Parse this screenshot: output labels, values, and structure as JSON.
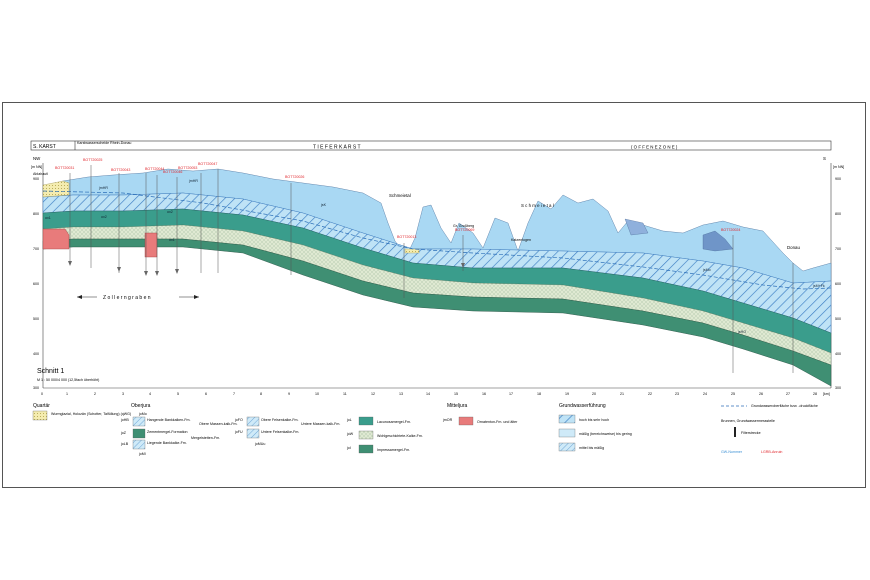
{
  "header": {
    "left_zone": "S. KARST",
    "divide_label": "Karstwasserscheide Rhein-Donau",
    "title": "T I E F E R   K A R S T",
    "right_zone": "( O F F E N E   Z O N E )"
  },
  "directions": {
    "left": "NW",
    "right": "S"
  },
  "axis": {
    "unit_left": "[m NN]",
    "unit_right": "[m NN]",
    "elevations": [
      "900",
      "800",
      "700",
      "600",
      "500",
      "400",
      "300"
    ],
    "km_ticks": [
      "0",
      "1",
      "2",
      "3",
      "4",
      "5",
      "6",
      "7",
      "8",
      "9",
      "10",
      "11",
      "12",
      "13",
      "14",
      "15",
      "16",
      "17",
      "18",
      "19",
      "20",
      "21",
      "22",
      "23",
      "24",
      "25",
      "26",
      "27",
      "28"
    ],
    "km_unit": "[km]"
  },
  "places": {
    "ablaheutl": "Ablahautl",
    "schmeietal": "Schmeietal",
    "schmeietal2": "S c h m e i e t a l",
    "grosberg": "Gr. Großberg",
    "katzenlogen": "Katzenlogen",
    "donau": "Donau",
    "zollerngraben": "Z o l l e r n g r a b e n"
  },
  "boreholes": [
    "BOT720031",
    "BOT720025",
    "BOT720043",
    "BOT720044",
    "BOT720046",
    "BOT720047",
    "BOT720053",
    "BOT720026",
    "BOT720013",
    "BOT720069",
    "BOT720024"
  ],
  "units_on_section": [
    "jmHR",
    "ox2",
    "ox1",
    "jmHR",
    "jsK",
    "ox2",
    "ox1",
    "jsMo",
    "jsHO",
    "jsM+Fk"
  ],
  "schnitt": {
    "title": "Schnitt 1",
    "scale": "M 1 : 50 000/4 000 (12,5fach überhöht)"
  },
  "legend": {
    "quartaer": {
      "heading": "Quartär",
      "item": "Wurmglazial, Holozän (Schotter, Talfüllung) (qWG)"
    },
    "oberjura": {
      "heading": "Oberjura",
      "rows": [
        {
          "code": "joHB",
          "text": "Hangende Bankkalken-Fm."
        },
        {
          "code": "joZ",
          "text": "Zementmergel-Formation"
        },
        {
          "code": "joLB",
          "text": "Liegende Bankkalke-Fm."
        }
      ],
      "bracket": "Obere Massen-kalk-Fm.",
      "side": "Mergelstetten-Fm.",
      "top_code": "joMo",
      "bottom_code": "joMl",
      "rows2": [
        {
          "code": "joFO",
          "text": "Obere Felsenkalke-Fm."
        },
        {
          "code": "joFU",
          "text": "Untere Felsenkalke-Fm."
        }
      ],
      "bracket2": "Untere Massen-kalk-Fm.",
      "bottom_code2": "joMUu",
      "rows3": [
        {
          "code": "joL",
          "text": "Lacunosamergel-Fm."
        },
        {
          "code": "joW",
          "text": "Wohlgeschichtete-Kalke-Fm."
        },
        {
          "code": "joI",
          "text": "Impressamergel-Fm."
        }
      ]
    },
    "mitteljura": {
      "heading": "Mitteljura",
      "code": "jmOR",
      "item": "Ornatenton-Fm. und älter"
    },
    "grundwasser": {
      "heading": "Grundwasserführung",
      "items": [
        "hoch bis sehr hoch",
        "mäßig (bereichsweise) bis gering",
        "mittel bis mäßig"
      ]
    },
    "symbols": {
      "gw_surface": "Grundwasseroberfläche bzw. -druckfläche",
      "brunnen": "Brunnen, Grundwassermessstelle",
      "filter": "Filterstrecke",
      "gw_nummer": "GW-Nummer",
      "lgrb": "LGRB-Anruin"
    }
  },
  "colors": {
    "karst_blue": "#a9d8f3",
    "karst_blue_dark": "#3f86c8",
    "lacunosa": "#3a9d8c",
    "impressa": "#3f8f73",
    "wohlgeschichtet": "#d9e6cf",
    "ornatenton": "#e87b7b",
    "quartaer": "#f4ecb0"
  }
}
